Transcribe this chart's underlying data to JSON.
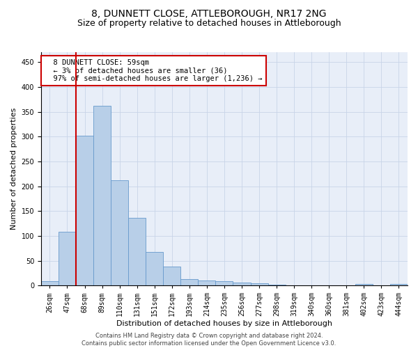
{
  "title": "8, DUNNETT CLOSE, ATTLEBOROUGH, NR17 2NG",
  "subtitle": "Size of property relative to detached houses in Attleborough",
  "xlabel": "Distribution of detached houses by size in Attleborough",
  "ylabel": "Number of detached properties",
  "footer": "Contains HM Land Registry data © Crown copyright and database right 2024.\nContains public sector information licensed under the Open Government Licence v3.0.",
  "bins": [
    "26sqm",
    "47sqm",
    "68sqm",
    "89sqm",
    "110sqm",
    "131sqm",
    "151sqm",
    "172sqm",
    "193sqm",
    "214sqm",
    "235sqm",
    "256sqm",
    "277sqm",
    "298sqm",
    "319sqm",
    "340sqm",
    "360sqm",
    "381sqm",
    "402sqm",
    "423sqm",
    "444sqm"
  ],
  "values": [
    8,
    108,
    302,
    362,
    212,
    136,
    68,
    38,
    13,
    10,
    9,
    6,
    4,
    2,
    0,
    0,
    0,
    0,
    3,
    0,
    3
  ],
  "bar_color": "#b8cfe8",
  "bar_edge_color": "#6699cc",
  "vline_color": "#cc0000",
  "vline_x_idx": 1.5,
  "annotation_text": "  8 DUNNETT CLOSE: 59sqm\n  ← 3% of detached houses are smaller (36)\n  97% of semi-detached houses are larger (1,236) →",
  "annotation_box_color": "#ffffff",
  "annotation_box_edgecolor": "#cc0000",
  "ylim": [
    0,
    470
  ],
  "yticks": [
    0,
    50,
    100,
    150,
    200,
    250,
    300,
    350,
    400,
    450
  ],
  "title_fontsize": 10,
  "subtitle_fontsize": 9,
  "xlabel_fontsize": 8,
  "ylabel_fontsize": 8,
  "tick_fontsize": 7,
  "footer_fontsize": 6,
  "bg_color": "#ffffff",
  "plot_bg_color": "#e8eef8",
  "grid_color": "#c8d4e8"
}
